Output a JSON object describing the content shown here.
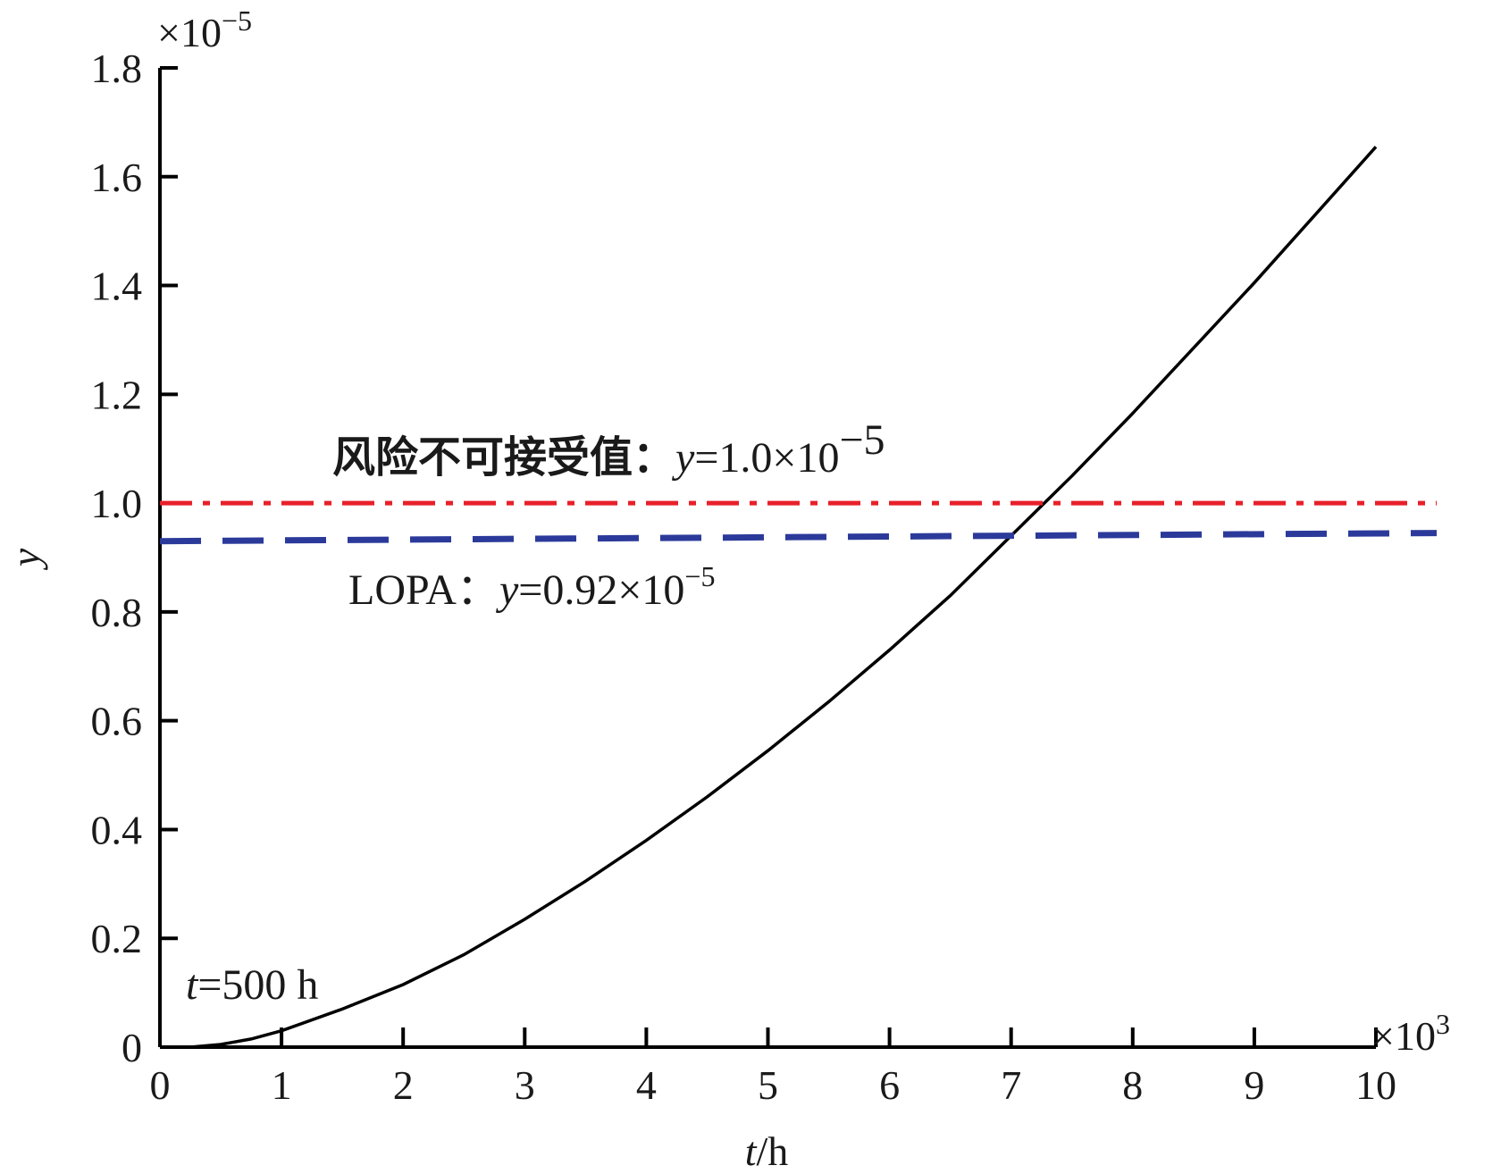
{
  "chart_data": {
    "type": "line",
    "x_multiplier": "×10",
    "x_multiplier_exp": "3",
    "y_multiplier": "×10",
    "y_multiplier_exp": "−5",
    "xlabel_var": "t",
    "xlabel_unit": "/h",
    "ylabel": "y",
    "xlim": [
      0,
      10
    ],
    "ylim": [
      0,
      1.8
    ],
    "x_ticks": [
      "0",
      "1",
      "2",
      "3",
      "4",
      "5",
      "6",
      "7",
      "8",
      "9",
      "10"
    ],
    "y_ticks": [
      "0",
      "0.2",
      "0.4",
      "0.6",
      "0.8",
      "1.0",
      "1.2",
      "1.4",
      "1.6",
      "1.8"
    ],
    "series": [
      {
        "color": "#000000",
        "style": "solid",
        "x": [
          0.25,
          0.5,
          0.75,
          1.0,
          1.5,
          2.0,
          2.5,
          3.0,
          3.5,
          4.0,
          4.5,
          5.0,
          5.5,
          6.0,
          6.5,
          7.0,
          7.5,
          8.0,
          8.5,
          9.0,
          9.5,
          10.0
        ],
        "y": [
          0.0,
          0.005,
          0.015,
          0.03,
          0.07,
          0.115,
          0.17,
          0.235,
          0.305,
          0.38,
          0.46,
          0.545,
          0.635,
          0.73,
          0.83,
          0.94,
          1.05,
          1.165,
          1.285,
          1.405,
          1.53,
          1.655
        ]
      },
      {
        "color": "#e8202a",
        "style": "dash-dot",
        "x": [
          0,
          10.5
        ],
        "y": [
          1.0,
          1.0
        ]
      },
      {
        "color": "#2b3a9a",
        "style": "dashed",
        "x": [
          0,
          10.5
        ],
        "y": [
          0.93,
          0.945
        ]
      }
    ],
    "annotations": {
      "risk": {
        "prefix": "风险不可接受值：",
        "var": "y",
        "value": "=1.0×10",
        "exp": "−5"
      },
      "lopa": {
        "prefix": "LOPA：",
        "var": "y",
        "value": "=0.92×10",
        "exp": "−5"
      },
      "t500": {
        "var": "t",
        "value": "=500 h"
      }
    }
  }
}
